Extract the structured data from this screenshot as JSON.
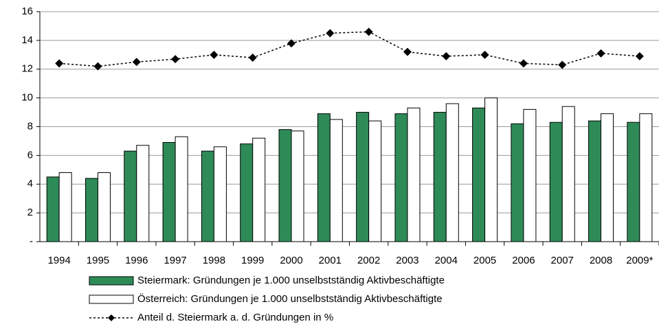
{
  "chart_data": {
    "type": "bar",
    "categories": [
      "1994",
      "1995",
      "1996",
      "1997",
      "1998",
      "1999",
      "2000",
      "2001",
      "2002",
      "2003",
      "2004",
      "2005",
      "2006",
      "2007",
      "2008",
      "2009*"
    ],
    "series": [
      {
        "name": "Steiermark: Gründungen je 1.000 unselbstständig Aktivbeschäftigte",
        "color": "#2e8b57",
        "type": "bar",
        "values": [
          4.5,
          4.4,
          6.3,
          6.9,
          6.3,
          6.8,
          7.8,
          8.9,
          9.0,
          8.9,
          9.0,
          9.3,
          8.2,
          8.3,
          8.4,
          8.3
        ]
      },
      {
        "name": "Österreich: Gründungen je 1.000 unselbstständig Aktivbeschäftigte",
        "color": "#ffffff",
        "type": "bar",
        "values": [
          4.8,
          4.8,
          6.7,
          7.3,
          6.6,
          7.2,
          7.7,
          8.5,
          8.4,
          9.3,
          9.6,
          10.0,
          9.2,
          9.4,
          8.9,
          8.9
        ]
      },
      {
        "name": "Anteil d. Steiermark a. d. Gründungen in %",
        "color": "#000000",
        "type": "line",
        "line_style": "dashed",
        "marker": "diamond",
        "values": [
          12.4,
          12.2,
          12.5,
          12.7,
          13.0,
          12.8,
          13.8,
          14.5,
          14.6,
          13.2,
          12.9,
          13.0,
          12.4,
          12.3,
          13.1,
          12.9
        ]
      }
    ],
    "ylim": [
      0,
      16
    ],
    "yticks": [
      {
        "value": 0,
        "label": "-"
      },
      2,
      4,
      6,
      8,
      10,
      12,
      14,
      16
    ],
    "grid": true
  }
}
